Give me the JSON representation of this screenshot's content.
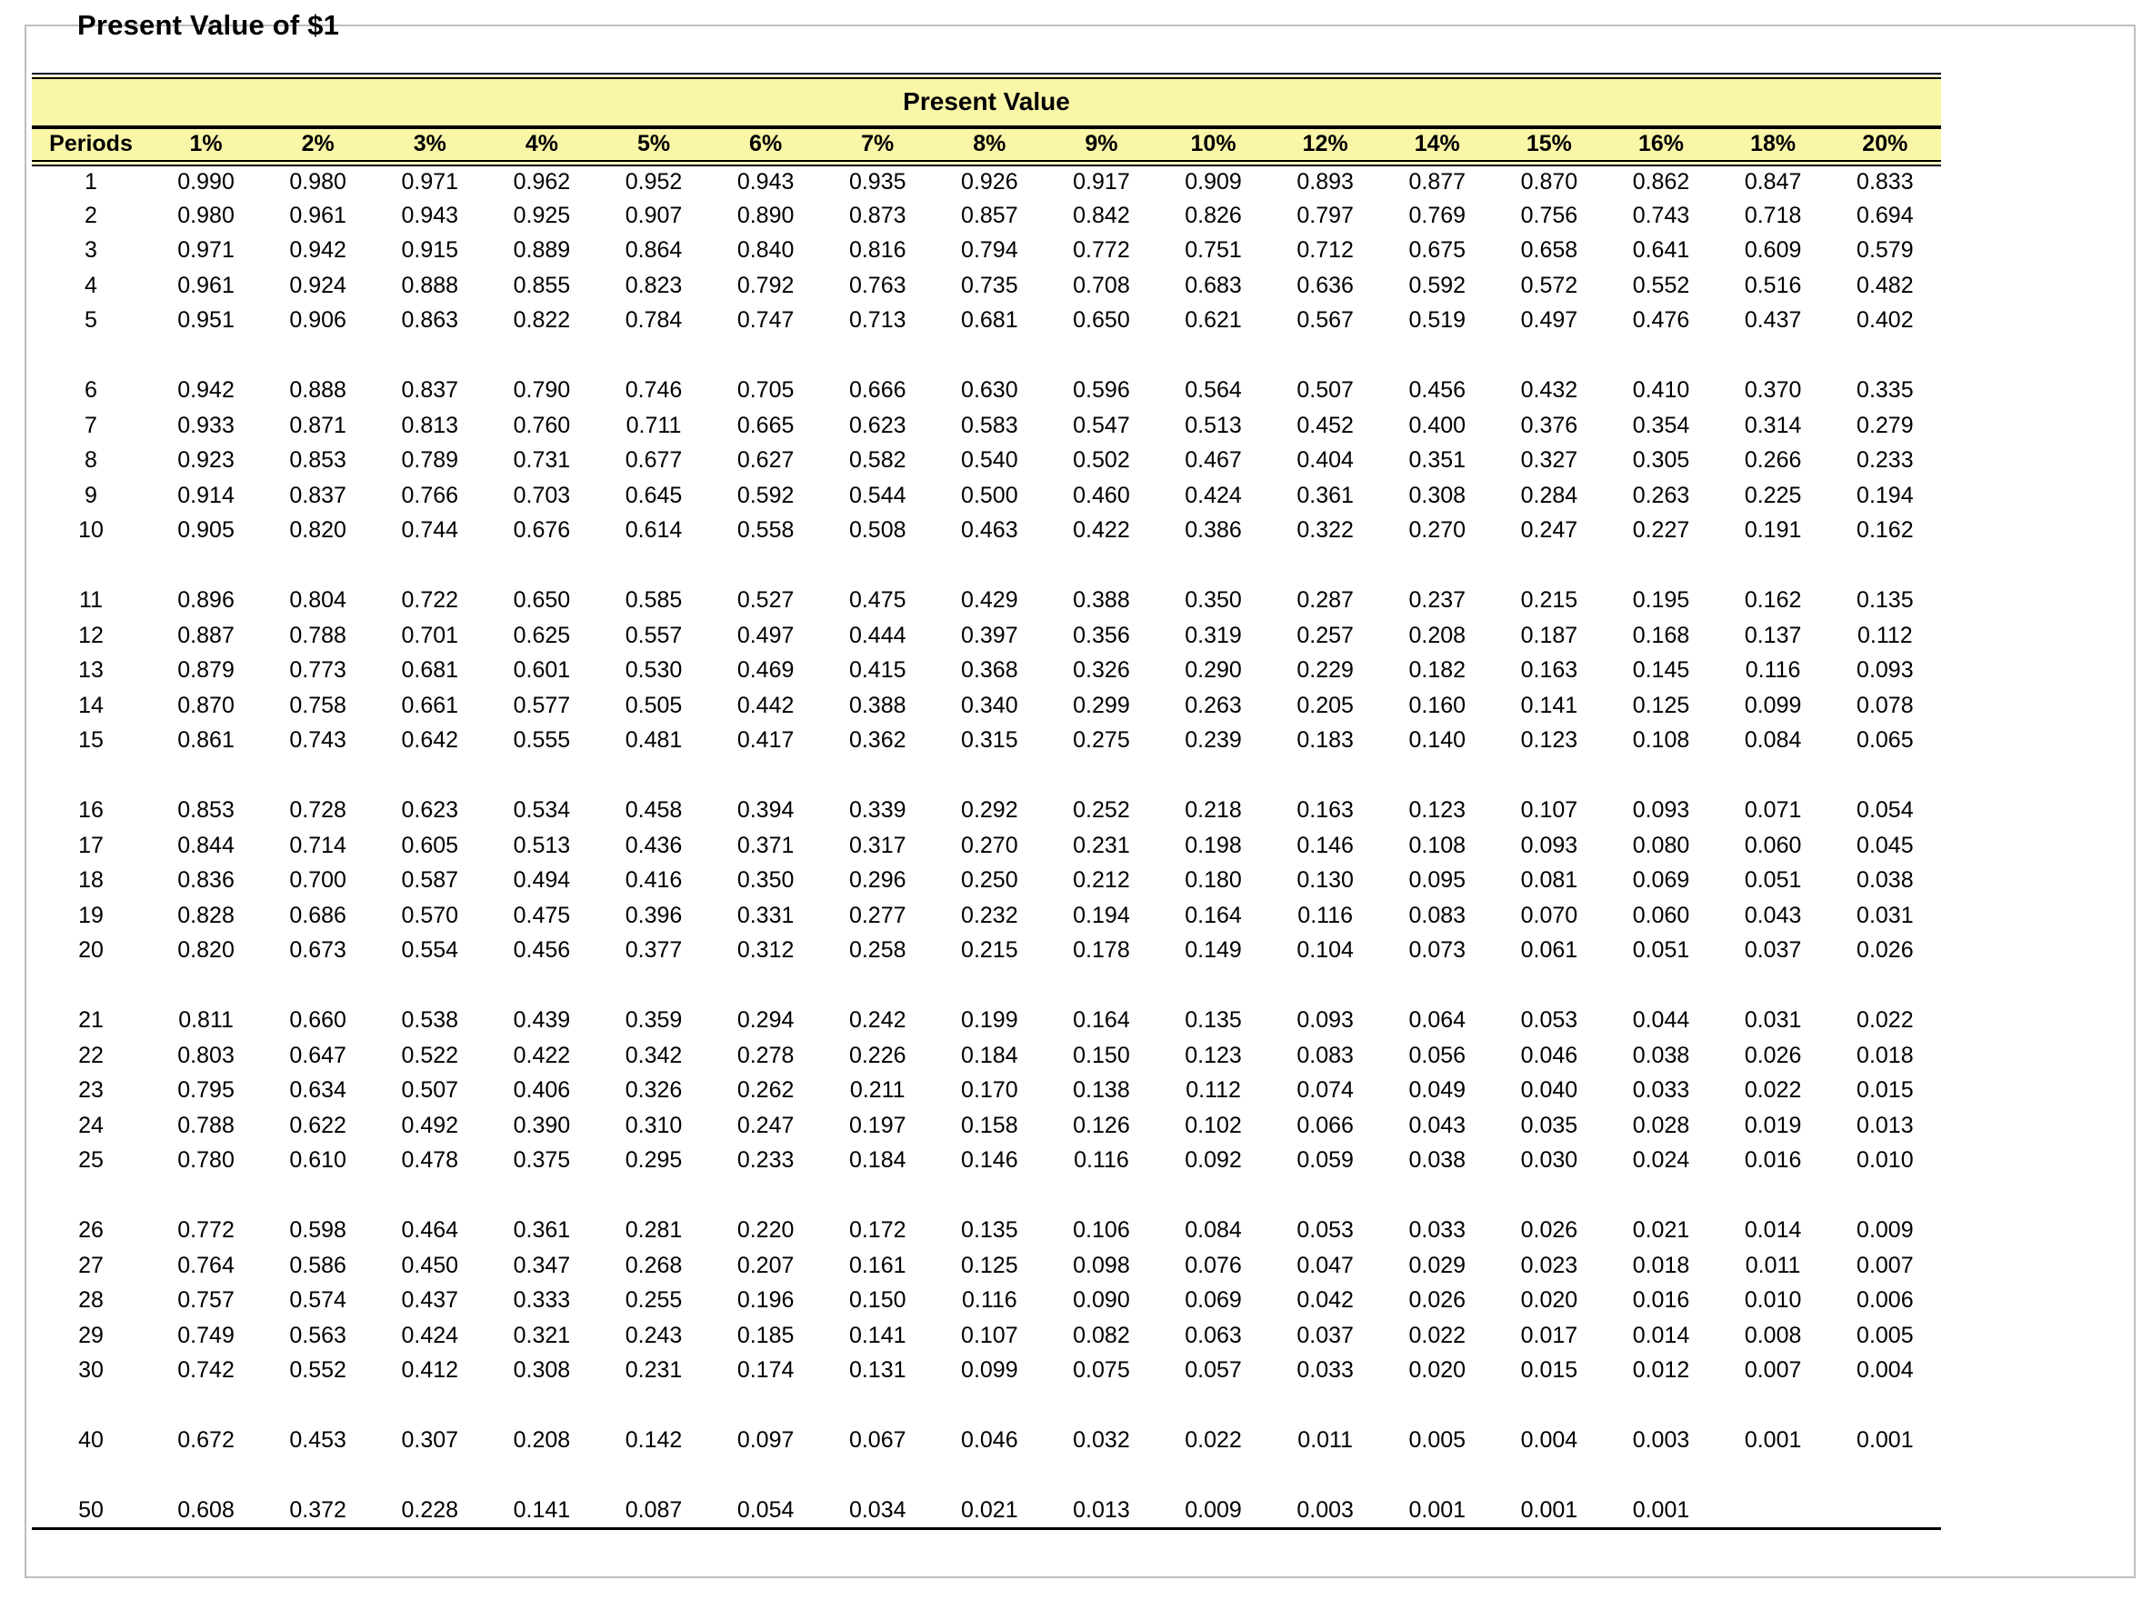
{
  "page": {
    "title": "Present Value of $1"
  },
  "colors": {
    "header_bg": "#FAF6A7",
    "rule": "#000000",
    "frame": "#BDBDBD"
  },
  "table": {
    "banner": "Present Value",
    "columns": [
      "Periods",
      "1%",
      "2%",
      "3%",
      "4%",
      "5%",
      "6%",
      "7%",
      "8%",
      "9%",
      "10%",
      "12%",
      "14%",
      "15%",
      "16%",
      "18%",
      "20%"
    ],
    "group_break_after": [
      "5",
      "10",
      "15",
      "20",
      "25",
      "30",
      "40"
    ],
    "rows": [
      {
        "period": "1",
        "values": [
          "0.990",
          "0.980",
          "0.971",
          "0.962",
          "0.952",
          "0.943",
          "0.935",
          "0.926",
          "0.917",
          "0.909",
          "0.893",
          "0.877",
          "0.870",
          "0.862",
          "0.847",
          "0.833"
        ]
      },
      {
        "period": "2",
        "values": [
          "0.980",
          "0.961",
          "0.943",
          "0.925",
          "0.907",
          "0.890",
          "0.873",
          "0.857",
          "0.842",
          "0.826",
          "0.797",
          "0.769",
          "0.756",
          "0.743",
          "0.718",
          "0.694"
        ]
      },
      {
        "period": "3",
        "values": [
          "0.971",
          "0.942",
          "0.915",
          "0.889",
          "0.864",
          "0.840",
          "0.816",
          "0.794",
          "0.772",
          "0.751",
          "0.712",
          "0.675",
          "0.658",
          "0.641",
          "0.609",
          "0.579"
        ]
      },
      {
        "period": "4",
        "values": [
          "0.961",
          "0.924",
          "0.888",
          "0.855",
          "0.823",
          "0.792",
          "0.763",
          "0.735",
          "0.708",
          "0.683",
          "0.636",
          "0.592",
          "0.572",
          "0.552",
          "0.516",
          "0.482"
        ]
      },
      {
        "period": "5",
        "values": [
          "0.951",
          "0.906",
          "0.863",
          "0.822",
          "0.784",
          "0.747",
          "0.713",
          "0.681",
          "0.650",
          "0.621",
          "0.567",
          "0.519",
          "0.497",
          "0.476",
          "0.437",
          "0.402"
        ]
      },
      {
        "period": "6",
        "values": [
          "0.942",
          "0.888",
          "0.837",
          "0.790",
          "0.746",
          "0.705",
          "0.666",
          "0.630",
          "0.596",
          "0.564",
          "0.507",
          "0.456",
          "0.432",
          "0.410",
          "0.370",
          "0.335"
        ]
      },
      {
        "period": "7",
        "values": [
          "0.933",
          "0.871",
          "0.813",
          "0.760",
          "0.711",
          "0.665",
          "0.623",
          "0.583",
          "0.547",
          "0.513",
          "0.452",
          "0.400",
          "0.376",
          "0.354",
          "0.314",
          "0.279"
        ]
      },
      {
        "period": "8",
        "values": [
          "0.923",
          "0.853",
          "0.789",
          "0.731",
          "0.677",
          "0.627",
          "0.582",
          "0.540",
          "0.502",
          "0.467",
          "0.404",
          "0.351",
          "0.327",
          "0.305",
          "0.266",
          "0.233"
        ]
      },
      {
        "period": "9",
        "values": [
          "0.914",
          "0.837",
          "0.766",
          "0.703",
          "0.645",
          "0.592",
          "0.544",
          "0.500",
          "0.460",
          "0.424",
          "0.361",
          "0.308",
          "0.284",
          "0.263",
          "0.225",
          "0.194"
        ]
      },
      {
        "period": "10",
        "values": [
          "0.905",
          "0.820",
          "0.744",
          "0.676",
          "0.614",
          "0.558",
          "0.508",
          "0.463",
          "0.422",
          "0.386",
          "0.322",
          "0.270",
          "0.247",
          "0.227",
          "0.191",
          "0.162"
        ]
      },
      {
        "period": "11",
        "values": [
          "0.896",
          "0.804",
          "0.722",
          "0.650",
          "0.585",
          "0.527",
          "0.475",
          "0.429",
          "0.388",
          "0.350",
          "0.287",
          "0.237",
          "0.215",
          "0.195",
          "0.162",
          "0.135"
        ]
      },
      {
        "period": "12",
        "values": [
          "0.887",
          "0.788",
          "0.701",
          "0.625",
          "0.557",
          "0.497",
          "0.444",
          "0.397",
          "0.356",
          "0.319",
          "0.257",
          "0.208",
          "0.187",
          "0.168",
          "0.137",
          "0.112"
        ]
      },
      {
        "period": "13",
        "values": [
          "0.879",
          "0.773",
          "0.681",
          "0.601",
          "0.530",
          "0.469",
          "0.415",
          "0.368",
          "0.326",
          "0.290",
          "0.229",
          "0.182",
          "0.163",
          "0.145",
          "0.116",
          "0.093"
        ]
      },
      {
        "period": "14",
        "values": [
          "0.870",
          "0.758",
          "0.661",
          "0.577",
          "0.505",
          "0.442",
          "0.388",
          "0.340",
          "0.299",
          "0.263",
          "0.205",
          "0.160",
          "0.141",
          "0.125",
          "0.099",
          "0.078"
        ]
      },
      {
        "period": "15",
        "values": [
          "0.861",
          "0.743",
          "0.642",
          "0.555",
          "0.481",
          "0.417",
          "0.362",
          "0.315",
          "0.275",
          "0.239",
          "0.183",
          "0.140",
          "0.123",
          "0.108",
          "0.084",
          "0.065"
        ]
      },
      {
        "period": "16",
        "values": [
          "0.853",
          "0.728",
          "0.623",
          "0.534",
          "0.458",
          "0.394",
          "0.339",
          "0.292",
          "0.252",
          "0.218",
          "0.163",
          "0.123",
          "0.107",
          "0.093",
          "0.071",
          "0.054"
        ]
      },
      {
        "period": "17",
        "values": [
          "0.844",
          "0.714",
          "0.605",
          "0.513",
          "0.436",
          "0.371",
          "0.317",
          "0.270",
          "0.231",
          "0.198",
          "0.146",
          "0.108",
          "0.093",
          "0.080",
          "0.060",
          "0.045"
        ]
      },
      {
        "period": "18",
        "values": [
          "0.836",
          "0.700",
          "0.587",
          "0.494",
          "0.416",
          "0.350",
          "0.296",
          "0.250",
          "0.212",
          "0.180",
          "0.130",
          "0.095",
          "0.081",
          "0.069",
          "0.051",
          "0.038"
        ]
      },
      {
        "period": "19",
        "values": [
          "0.828",
          "0.686",
          "0.570",
          "0.475",
          "0.396",
          "0.331",
          "0.277",
          "0.232",
          "0.194",
          "0.164",
          "0.116",
          "0.083",
          "0.070",
          "0.060",
          "0.043",
          "0.031"
        ]
      },
      {
        "period": "20",
        "values": [
          "0.820",
          "0.673",
          "0.554",
          "0.456",
          "0.377",
          "0.312",
          "0.258",
          "0.215",
          "0.178",
          "0.149",
          "0.104",
          "0.073",
          "0.061",
          "0.051",
          "0.037",
          "0.026"
        ]
      },
      {
        "period": "21",
        "values": [
          "0.811",
          "0.660",
          "0.538",
          "0.439",
          "0.359",
          "0.294",
          "0.242",
          "0.199",
          "0.164",
          "0.135",
          "0.093",
          "0.064",
          "0.053",
          "0.044",
          "0.031",
          "0.022"
        ]
      },
      {
        "period": "22",
        "values": [
          "0.803",
          "0.647",
          "0.522",
          "0.422",
          "0.342",
          "0.278",
          "0.226",
          "0.184",
          "0.150",
          "0.123",
          "0.083",
          "0.056",
          "0.046",
          "0.038",
          "0.026",
          "0.018"
        ]
      },
      {
        "period": "23",
        "values": [
          "0.795",
          "0.634",
          "0.507",
          "0.406",
          "0.326",
          "0.262",
          "0.211",
          "0.170",
          "0.138",
          "0.112",
          "0.074",
          "0.049",
          "0.040",
          "0.033",
          "0.022",
          "0.015"
        ]
      },
      {
        "period": "24",
        "values": [
          "0.788",
          "0.622",
          "0.492",
          "0.390",
          "0.310",
          "0.247",
          "0.197",
          "0.158",
          "0.126",
          "0.102",
          "0.066",
          "0.043",
          "0.035",
          "0.028",
          "0.019",
          "0.013"
        ]
      },
      {
        "period": "25",
        "values": [
          "0.780",
          "0.610",
          "0.478",
          "0.375",
          "0.295",
          "0.233",
          "0.184",
          "0.146",
          "0.116",
          "0.092",
          "0.059",
          "0.038",
          "0.030",
          "0.024",
          "0.016",
          "0.010"
        ]
      },
      {
        "period": "26",
        "values": [
          "0.772",
          "0.598",
          "0.464",
          "0.361",
          "0.281",
          "0.220",
          "0.172",
          "0.135",
          "0.106",
          "0.084",
          "0.053",
          "0.033",
          "0.026",
          "0.021",
          "0.014",
          "0.009"
        ]
      },
      {
        "period": "27",
        "values": [
          "0.764",
          "0.586",
          "0.450",
          "0.347",
          "0.268",
          "0.207",
          "0.161",
          "0.125",
          "0.098",
          "0.076",
          "0.047",
          "0.029",
          "0.023",
          "0.018",
          "0.011",
          "0.007"
        ]
      },
      {
        "period": "28",
        "values": [
          "0.757",
          "0.574",
          "0.437",
          "0.333",
          "0.255",
          "0.196",
          "0.150",
          "0.116",
          "0.090",
          "0.069",
          "0.042",
          "0.026",
          "0.020",
          "0.016",
          "0.010",
          "0.006"
        ]
      },
      {
        "period": "29",
        "values": [
          "0.749",
          "0.563",
          "0.424",
          "0.321",
          "0.243",
          "0.185",
          "0.141",
          "0.107",
          "0.082",
          "0.063",
          "0.037",
          "0.022",
          "0.017",
          "0.014",
          "0.008",
          "0.005"
        ]
      },
      {
        "period": "30",
        "values": [
          "0.742",
          "0.552",
          "0.412",
          "0.308",
          "0.231",
          "0.174",
          "0.131",
          "0.099",
          "0.075",
          "0.057",
          "0.033",
          "0.020",
          "0.015",
          "0.012",
          "0.007",
          "0.004"
        ]
      },
      {
        "period": "40",
        "values": [
          "0.672",
          "0.453",
          "0.307",
          "0.208",
          "0.142",
          "0.097",
          "0.067",
          "0.046",
          "0.032",
          "0.022",
          "0.011",
          "0.005",
          "0.004",
          "0.003",
          "0.001",
          "0.001"
        ]
      },
      {
        "period": "50",
        "values": [
          "0.608",
          "0.372",
          "0.228",
          "0.141",
          "0.087",
          "0.054",
          "0.034",
          "0.021",
          "0.013",
          "0.009",
          "0.003",
          "0.001",
          "0.001",
          "0.001",
          "",
          ""
        ]
      }
    ]
  }
}
